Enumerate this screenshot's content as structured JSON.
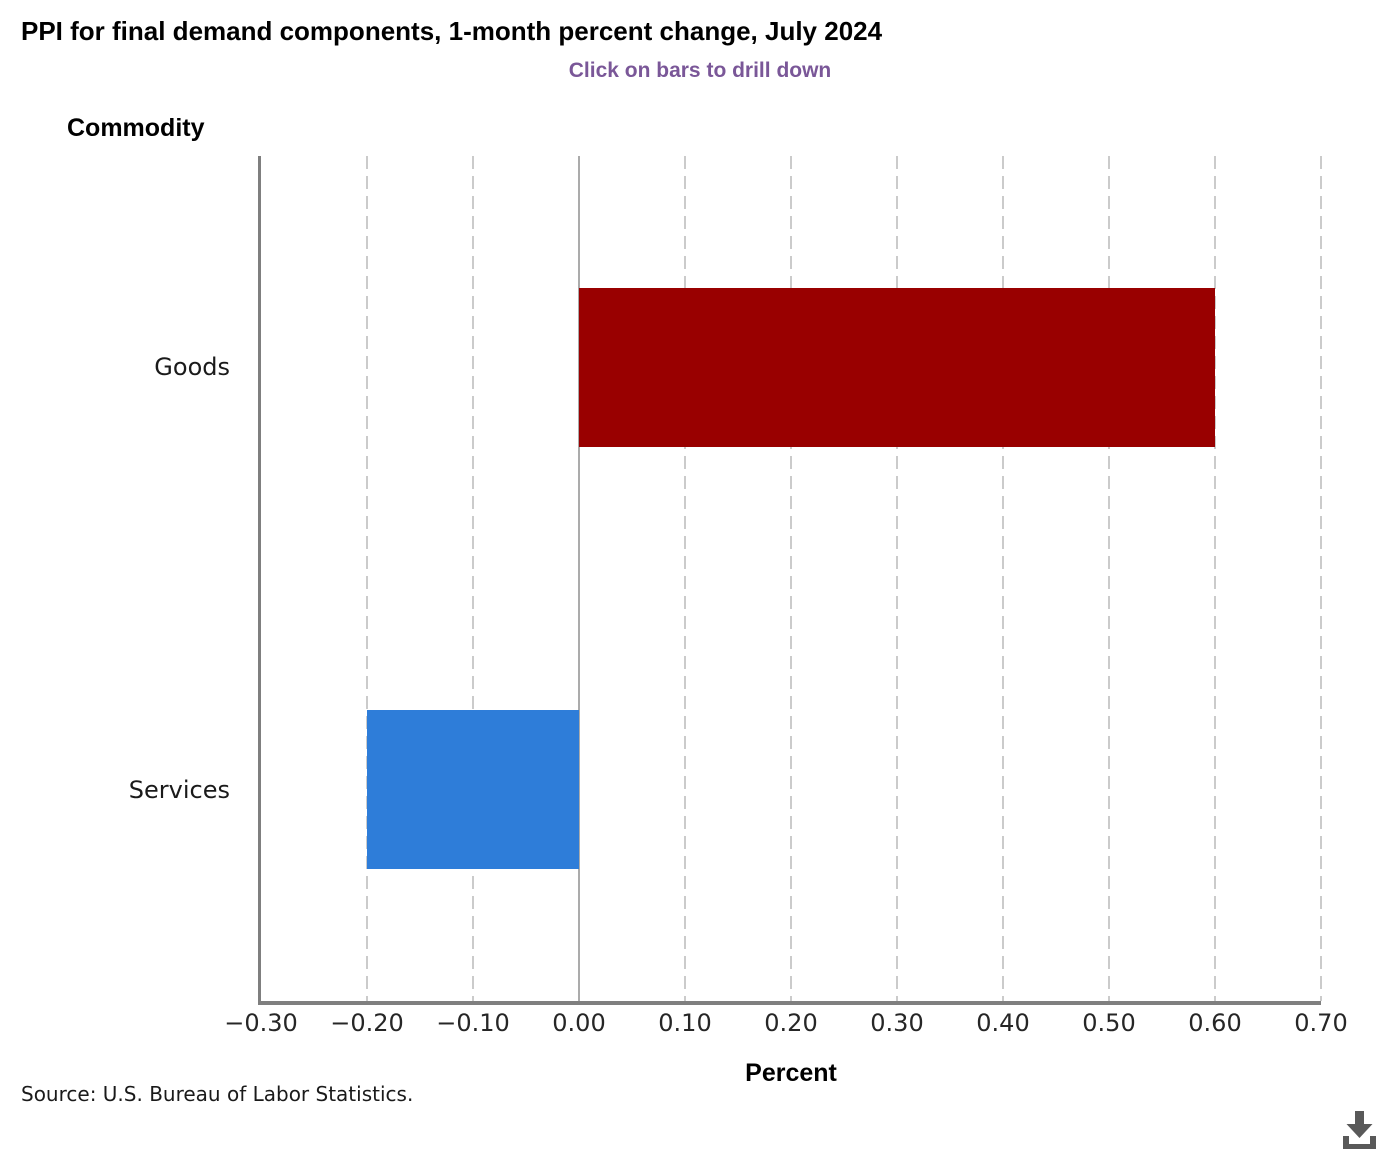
{
  "title": "PPI for final demand components, 1-month percent change, July 2024",
  "subtitle": "Click on bars to drill down",
  "source": "Source: U.S. Bureau of Labor Statistics.",
  "icons": {
    "download": "download-icon"
  },
  "colors": {
    "subtitle": "#7a5798",
    "axis_line": "#7f7f7f",
    "gridline": "#cbcbcb",
    "zero_line": "#ababab",
    "download_icon": "#595959",
    "bar_goods": "#990000",
    "bar_services": "#2e7dd9"
  },
  "chart_data": {
    "type": "bar",
    "orientation": "horizontal",
    "title": "PPI for final demand components, 1-month percent change, July 2024",
    "categories": [
      "Goods",
      "Services"
    ],
    "values": [
      0.6,
      -0.2
    ],
    "bar_colors": [
      "#990000",
      "#2e7dd9"
    ],
    "xlabel": "Percent",
    "ylabel": "Commodity",
    "xlim": [
      -0.3,
      0.7
    ],
    "x_ticks": [
      -0.3,
      -0.2,
      -0.1,
      0,
      0.1,
      0.2,
      0.3,
      0.4,
      0.5,
      0.6,
      0.7
    ],
    "x_tick_labels": [
      "−0.30",
      "−0.20",
      "−0.10",
      "0.00",
      "0.10",
      "0.20",
      "0.30",
      "0.40",
      "0.50",
      "0.60",
      "0.70"
    ],
    "grid": "vertical-dashed",
    "legend": "none"
  }
}
